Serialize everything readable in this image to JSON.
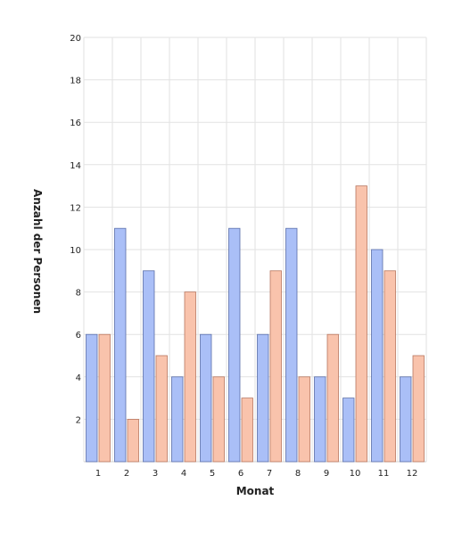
{
  "chart_data": {
    "type": "bar",
    "categories": [
      "1",
      "2",
      "3",
      "4",
      "5",
      "6",
      "7",
      "8",
      "9",
      "10",
      "11",
      "12"
    ],
    "series": [
      {
        "values": [
          6,
          11,
          9,
          4,
          6,
          11,
          6,
          11,
          4,
          3,
          10,
          4
        ],
        "color": "#aabff7",
        "stroke": "#5b6fa8"
      },
      {
        "values": [
          6,
          2,
          5,
          8,
          4,
          3,
          9,
          4,
          6,
          13,
          9,
          5
        ],
        "color": "#f9c3ac",
        "stroke": "#b87760"
      }
    ],
    "title": "",
    "xlabel": "Monat",
    "ylabel": "Anzahl der Personen",
    "ylim": [
      0,
      20
    ],
    "yticks": [
      2,
      4,
      6,
      8,
      10,
      12,
      14,
      16,
      18,
      20
    ],
    "grid": true,
    "legend": "none"
  }
}
